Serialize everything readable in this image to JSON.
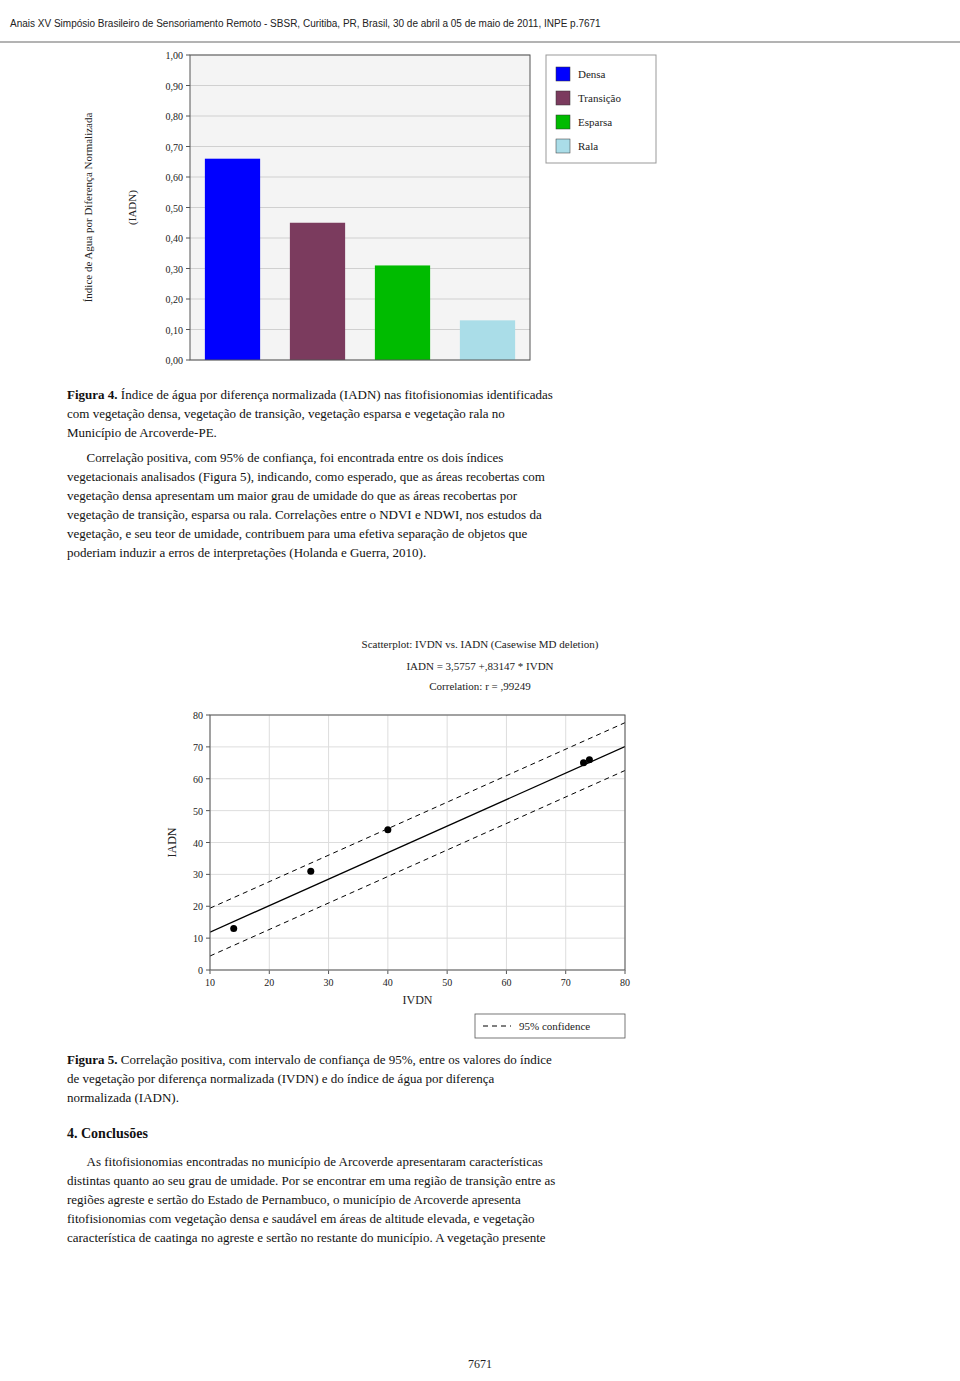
{
  "page": {
    "header": "Anais XV Simpósio Brasileiro de Sensoriamento Remoto - SBSR, Curitiba, PR, Brasil, 30 de abril a 05 de maio de 2011, INPE  p.7671",
    "figure4_label": "Figura 4.",
    "figure4_caption": " Índice de água por diferença normalizada (IADN) nas fitofisionomias identificadas\ncom vegetação densa, vegetação de transição, vegetação esparsa e vegetação rala no\nMunicípio de Arcoverde-PE.",
    "paragraph": "      Correlação positiva, com 95% de confiança, foi encontrada entre os dois índices\nvegetacionais analisados (Figura 5), indicando, como esperado, que as áreas recobertas com\nvegetação densa apresentam um maior grau de umidade do que as áreas recobertas por\nvegetação de transição, esparsa ou rala. Correlações entre o NDVI e NDWI, nos estudos da\nvegetação, e seu teor de umidade, contribuem para uma efetiva separação de objetos que\npoderiam induzir a erros de interpretações (Holanda e Guerra, 2010).",
    "figure5_label": "Figura 5.",
    "figure5_caption": " Correlação positiva, com intervalo de confiança de 95%, entre os valores do índice\nde vegetação por diferença normalizada (IVDN) e do índice de água por diferença\nnormalizada (IADN).",
    "section_title": "4. Conclusões",
    "section_text": "      As fitofisionomias encontradas no município de Arcoverde apresentaram características\ndistintas quanto ao seu grau de umidade. Por se encontrar em uma região de transição entre as\nregiões agreste e sertão do Estado de Pernambuco, o município de Arcoverde apresenta\nfitofisionomias com vegetação densa e saudável em áreas de altitude elevada, e vegetação\ncaracterística de caatinga no agreste e sertão no restante do município. A vegetação presente",
    "footer": "7671"
  },
  "chart_data": [
    {
      "type": "bar",
      "categories": [
        "Densa",
        "Transição",
        "Esparsa",
        "Rala"
      ],
      "values": [
        0.66,
        0.45,
        0.31,
        0.13
      ],
      "colors": [
        "#0000FF",
        "#7B3B5E",
        "#00BB00",
        "#AADDE8"
      ],
      "ylabel": [
        "Índice de Agua por Diferença Normalizada",
        "(IADN)"
      ],
      "ylim": [
        0.0,
        1.0
      ],
      "yticks": [
        {
          "value": 0.0,
          "label": "0,00"
        },
        {
          "value": 0.1,
          "label": "0,10"
        },
        {
          "value": 0.2,
          "label": "0,20"
        },
        {
          "value": 0.3,
          "label": "0,30"
        },
        {
          "value": 0.4,
          "label": "0,40"
        },
        {
          "value": 0.5,
          "label": "0,50"
        },
        {
          "value": 0.6,
          "label": "0,60"
        },
        {
          "value": 0.7,
          "label": "0,70"
        },
        {
          "value": 0.8,
          "label": "0,80"
        },
        {
          "value": 0.9,
          "label": "0,90"
        },
        {
          "value": 1.0,
          "label": "1,00"
        }
      ],
      "grid": true,
      "legend": "right",
      "tick_labels": "y"
    },
    {
      "type": "scatter",
      "title": "Scatterplot: IVDN   vs. IADN   (Casewise MD deletion)",
      "subtitle": [
        "IADN   = 3,5757 +,83147 * IVDN",
        "Correlation: r = ,99249"
      ],
      "xlabel": "IVDN",
      "ylabel": "IADN",
      "x": [
        14,
        27,
        40,
        73,
        74
      ],
      "values": [
        13,
        31,
        44,
        65,
        66
      ],
      "color": "#000000",
      "fit": {
        "x": [
          10,
          80
        ],
        "values": [
          11.8904,
          70.0933
        ],
        "ci": 7.5,
        "ci_label": "95% confidence"
      },
      "xlim": [
        10,
        80
      ],
      "ylim": [
        0,
        80
      ],
      "xticks": [
        10,
        20,
        30,
        40,
        50,
        60,
        70,
        80
      ],
      "yticks": [
        0,
        10,
        20,
        30,
        40,
        50,
        60,
        70,
        80
      ],
      "grid": true
    }
  ]
}
